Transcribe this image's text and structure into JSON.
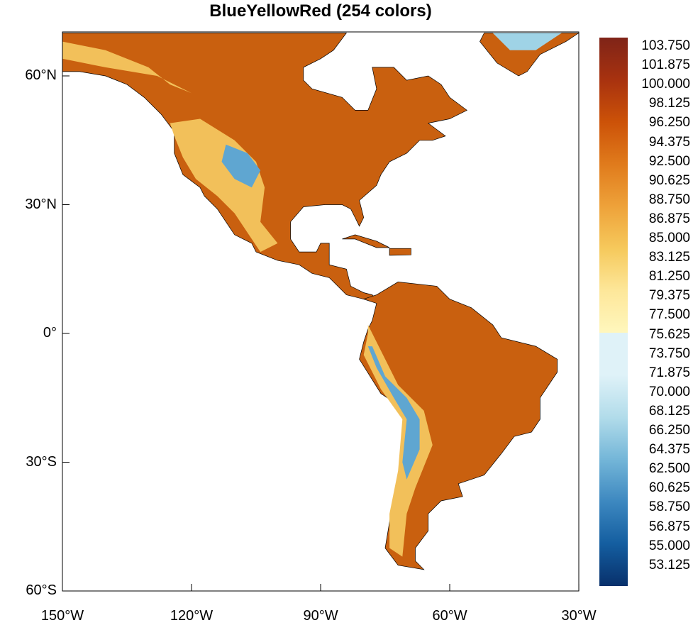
{
  "title": "BlueYellowRed (254 colors)",
  "colormap": "BlueYellowRed",
  "lat_labels": [
    "60°N",
    "30°N",
    "0°",
    "30°S",
    "60°S"
  ],
  "lon_labels": [
    "150°W",
    "120°W",
    "90°W",
    "60°W",
    "30°W"
  ],
  "lat_values": [
    60,
    30,
    0,
    -30,
    -60
  ],
  "lon_values": [
    -150,
    -120,
    -90,
    -60,
    -30
  ],
  "extent": {
    "lon": [
      -150,
      -30
    ],
    "lat": [
      -60,
      70
    ]
  },
  "colorbar": {
    "labels": [
      "103.750",
      "101.875",
      "100.000",
      "98.125",
      "96.250",
      "94.375",
      "92.500",
      "90.625",
      "88.750",
      "86.875",
      "85.000",
      "83.125",
      "81.250",
      "79.375",
      "77.500",
      "75.625",
      "73.750",
      "71.875",
      "70.000",
      "68.125",
      "66.250",
      "64.375",
      "62.500",
      "60.625",
      "58.750",
      "56.875",
      "55.000",
      "53.125"
    ],
    "colors": [
      "#7f2418",
      "#a8320f",
      "#cc5208",
      "#e07b1c",
      "#eea23a",
      "#f6c95c",
      "#fde79a",
      "#fff7bd",
      "#dff2f8",
      "#b2dcea",
      "#74b6d8",
      "#3d88c0",
      "#145ea0",
      "#08306b"
    ]
  },
  "colors": {
    "land": "#c9600f",
    "highland": "#f2c05a",
    "mountain_blue": "#5fa6d1",
    "coast": "#000000"
  }
}
